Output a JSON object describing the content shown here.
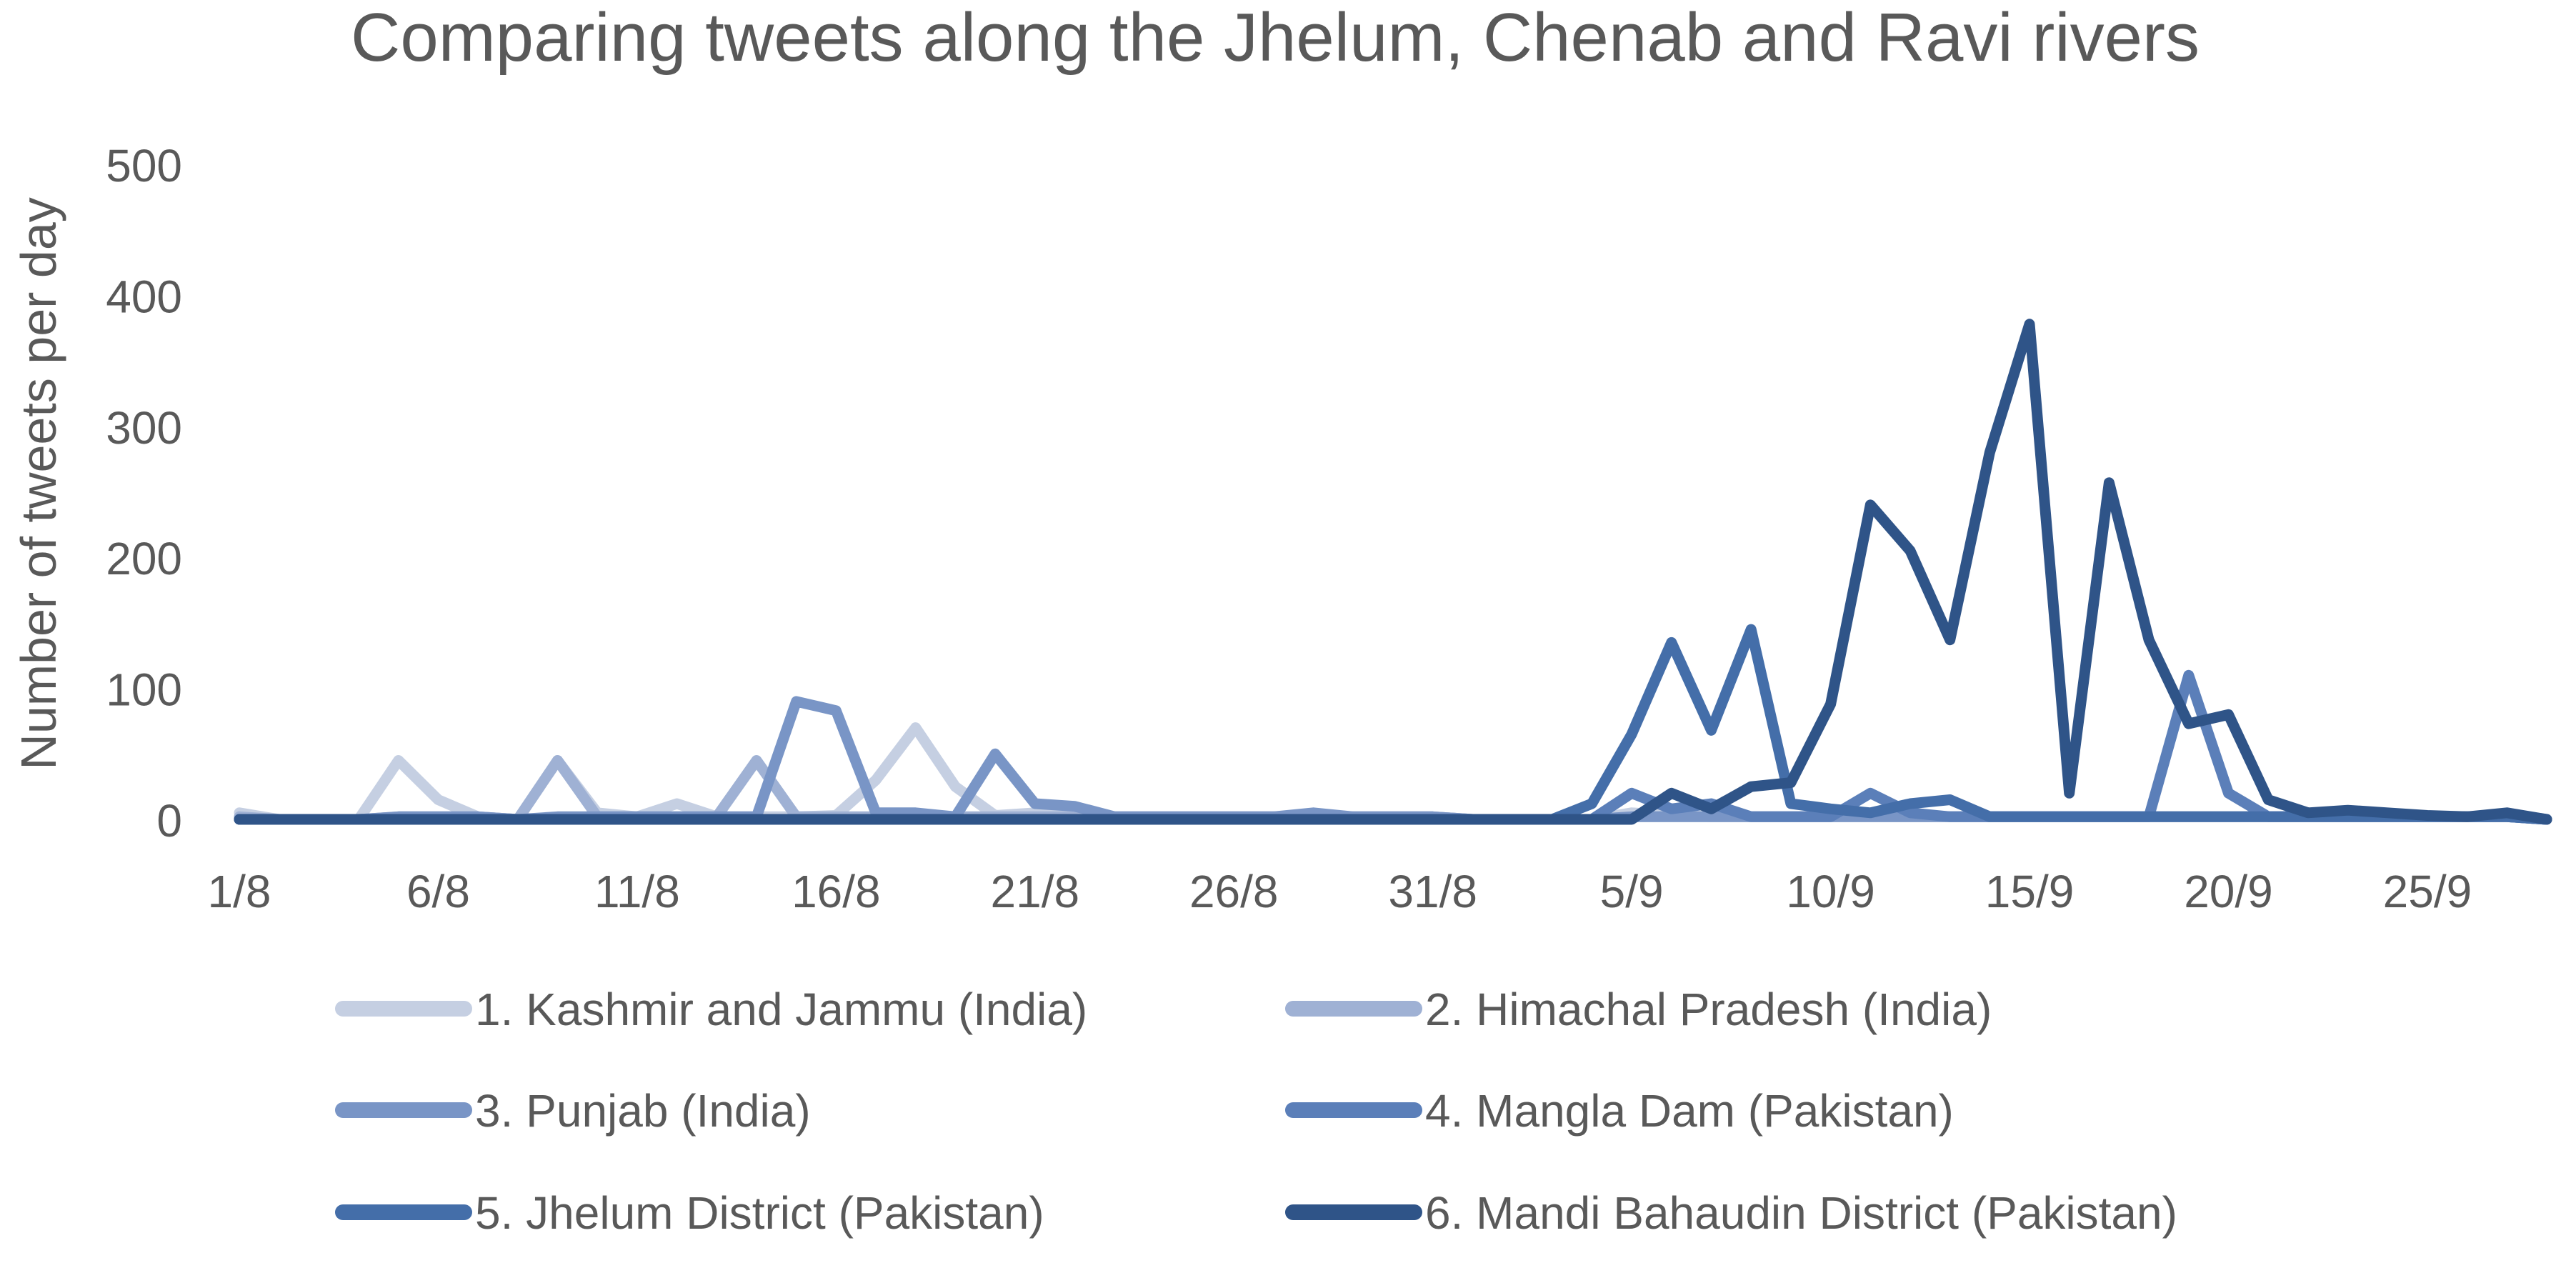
{
  "chart_data": {
    "type": "line",
    "title": "Comparing tweets along the Jhelum, Chenab and Ravi rivers",
    "xlabel": "",
    "ylabel": "Number of tweets per day",
    "ylim": [
      0,
      500
    ],
    "yticks": [
      "0",
      "100",
      "200",
      "300",
      "400",
      "500"
    ],
    "xtick_labels": [
      "1/8",
      "6/8",
      "11/8",
      "16/8",
      "21/8",
      "26/8",
      "31/8",
      "5/9",
      "10/9",
      "15/9",
      "20/9",
      "25/9"
    ],
    "grid": false,
    "legend_position": "bottom",
    "categories": [
      "1/8",
      "2/8",
      "3/8",
      "4/8",
      "5/8",
      "6/8",
      "7/8",
      "8/8",
      "9/8",
      "10/8",
      "11/8",
      "12/8",
      "13/8",
      "14/8",
      "15/8",
      "16/8",
      "17/8",
      "18/8",
      "19/8",
      "20/8",
      "21/8",
      "22/8",
      "23/8",
      "24/8",
      "25/8",
      "26/8",
      "27/8",
      "28/8",
      "29/8",
      "30/8",
      "31/8",
      "1/9",
      "2/9",
      "3/9",
      "4/9",
      "5/9",
      "6/9",
      "7/9",
      "8/9",
      "9/9",
      "10/9",
      "11/9",
      "12/9",
      "13/9",
      "14/9",
      "15/9",
      "16/9",
      "17/9",
      "18/9",
      "19/9",
      "20/9",
      "21/9",
      "22/9",
      "23/9",
      "24/9",
      "25/9",
      "26/9",
      "27/9",
      "28/9"
    ],
    "series": [
      {
        "name": "1. Kashmir and Jammu (India)",
        "color": "#c5cfe2",
        "values": [
          5,
          0,
          0,
          0,
          45,
          15,
          2,
          0,
          45,
          5,
          2,
          12,
          2,
          2,
          2,
          3,
          30,
          70,
          25,
          3,
          5,
          3,
          2,
          2,
          2,
          2,
          2,
          2,
          2,
          2,
          2,
          0,
          0,
          0,
          0,
          5,
          3,
          2,
          2,
          2,
          2,
          2,
          2,
          2,
          2,
          2,
          2,
          2,
          2,
          2,
          2,
          2,
          2,
          2,
          2,
          2,
          2,
          2,
          0
        ]
      },
      {
        "name": "2. Himachal Pradesh (India)",
        "color": "#9fb1d4",
        "values": [
          2,
          0,
          0,
          0,
          2,
          2,
          2,
          0,
          45,
          2,
          2,
          2,
          2,
          45,
          2,
          2,
          2,
          2,
          2,
          2,
          2,
          2,
          2,
          2,
          2,
          2,
          2,
          2,
          2,
          2,
          2,
          0,
          0,
          0,
          0,
          2,
          2,
          2,
          2,
          2,
          2,
          2,
          2,
          2,
          2,
          2,
          2,
          2,
          2,
          2,
          2,
          2,
          2,
          2,
          2,
          2,
          2,
          2,
          0
        ]
      },
      {
        "name": "3. Punjab (India)",
        "color": "#7995c6",
        "values": [
          0,
          0,
          0,
          0,
          2,
          2,
          2,
          0,
          2,
          2,
          2,
          2,
          2,
          2,
          90,
          83,
          5,
          5,
          2,
          50,
          12,
          10,
          2,
          2,
          2,
          2,
          2,
          5,
          2,
          2,
          2,
          0,
          0,
          0,
          0,
          2,
          2,
          2,
          2,
          2,
          2,
          2,
          2,
          2,
          2,
          2,
          2,
          2,
          2,
          2,
          2,
          2,
          2,
          2,
          2,
          2,
          2,
          2,
          0
        ]
      },
      {
        "name": "4. Mangla Dam (Pakistan)",
        "color": "#5b7fb9",
        "values": [
          0,
          0,
          0,
          0,
          0,
          0,
          0,
          0,
          0,
          0,
          0,
          0,
          0,
          0,
          0,
          0,
          0,
          0,
          0,
          0,
          0,
          0,
          0,
          0,
          0,
          0,
          0,
          0,
          0,
          0,
          0,
          0,
          0,
          0,
          0,
          20,
          8,
          12,
          2,
          2,
          2,
          20,
          5,
          2,
          2,
          2,
          2,
          2,
          2,
          110,
          20,
          2,
          2,
          2,
          2,
          2,
          2,
          2,
          0
        ]
      },
      {
        "name": "5. Jhelum District (Pakistan)",
        "color": "#446ea9",
        "values": [
          0,
          0,
          0,
          0,
          0,
          0,
          0,
          0,
          0,
          0,
          0,
          0,
          0,
          0,
          0,
          0,
          0,
          0,
          0,
          0,
          0,
          0,
          0,
          0,
          0,
          0,
          0,
          0,
          0,
          0,
          0,
          0,
          0,
          0,
          12,
          65,
          135,
          68,
          145,
          12,
          8,
          5,
          12,
          15,
          2,
          2,
          2,
          2,
          2,
          2,
          2,
          2,
          2,
          2,
          2,
          2,
          2,
          2,
          0
        ]
      },
      {
        "name": "6. Mandi Bahaudin District (Pakistan)",
        "color": "#2f5488",
        "values": [
          0,
          0,
          0,
          0,
          0,
          0,
          0,
          0,
          0,
          0,
          0,
          0,
          0,
          0,
          0,
          0,
          0,
          0,
          0,
          0,
          0,
          0,
          0,
          0,
          0,
          0,
          0,
          0,
          0,
          0,
          0,
          0,
          0,
          0,
          0,
          0,
          20,
          8,
          25,
          28,
          88,
          240,
          205,
          137,
          280,
          378,
          20,
          257,
          137,
          73,
          80,
          15,
          5,
          7,
          5,
          3,
          2,
          5,
          0
        ]
      }
    ]
  }
}
